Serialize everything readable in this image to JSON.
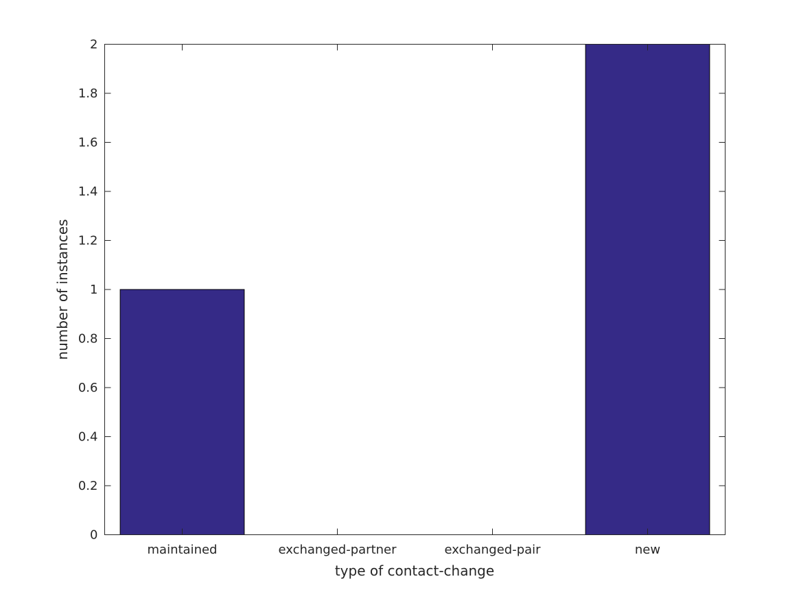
{
  "chart_data": {
    "type": "bar",
    "categories": [
      "maintained",
      "exchanged-partner",
      "exchanged-pair",
      "new"
    ],
    "values": [
      1,
      0,
      0,
      2
    ],
    "title": "",
    "xlabel": "type of contact-change",
    "ylabel": "number of instances",
    "ylim": [
      0,
      2
    ],
    "yticks": [
      "0",
      "0.2",
      "0.4",
      "0.6",
      "0.8",
      "1",
      "1.2",
      "1.4",
      "1.6",
      "1.8",
      "2"
    ],
    "grid": false,
    "bar_color": "#352a87"
  }
}
